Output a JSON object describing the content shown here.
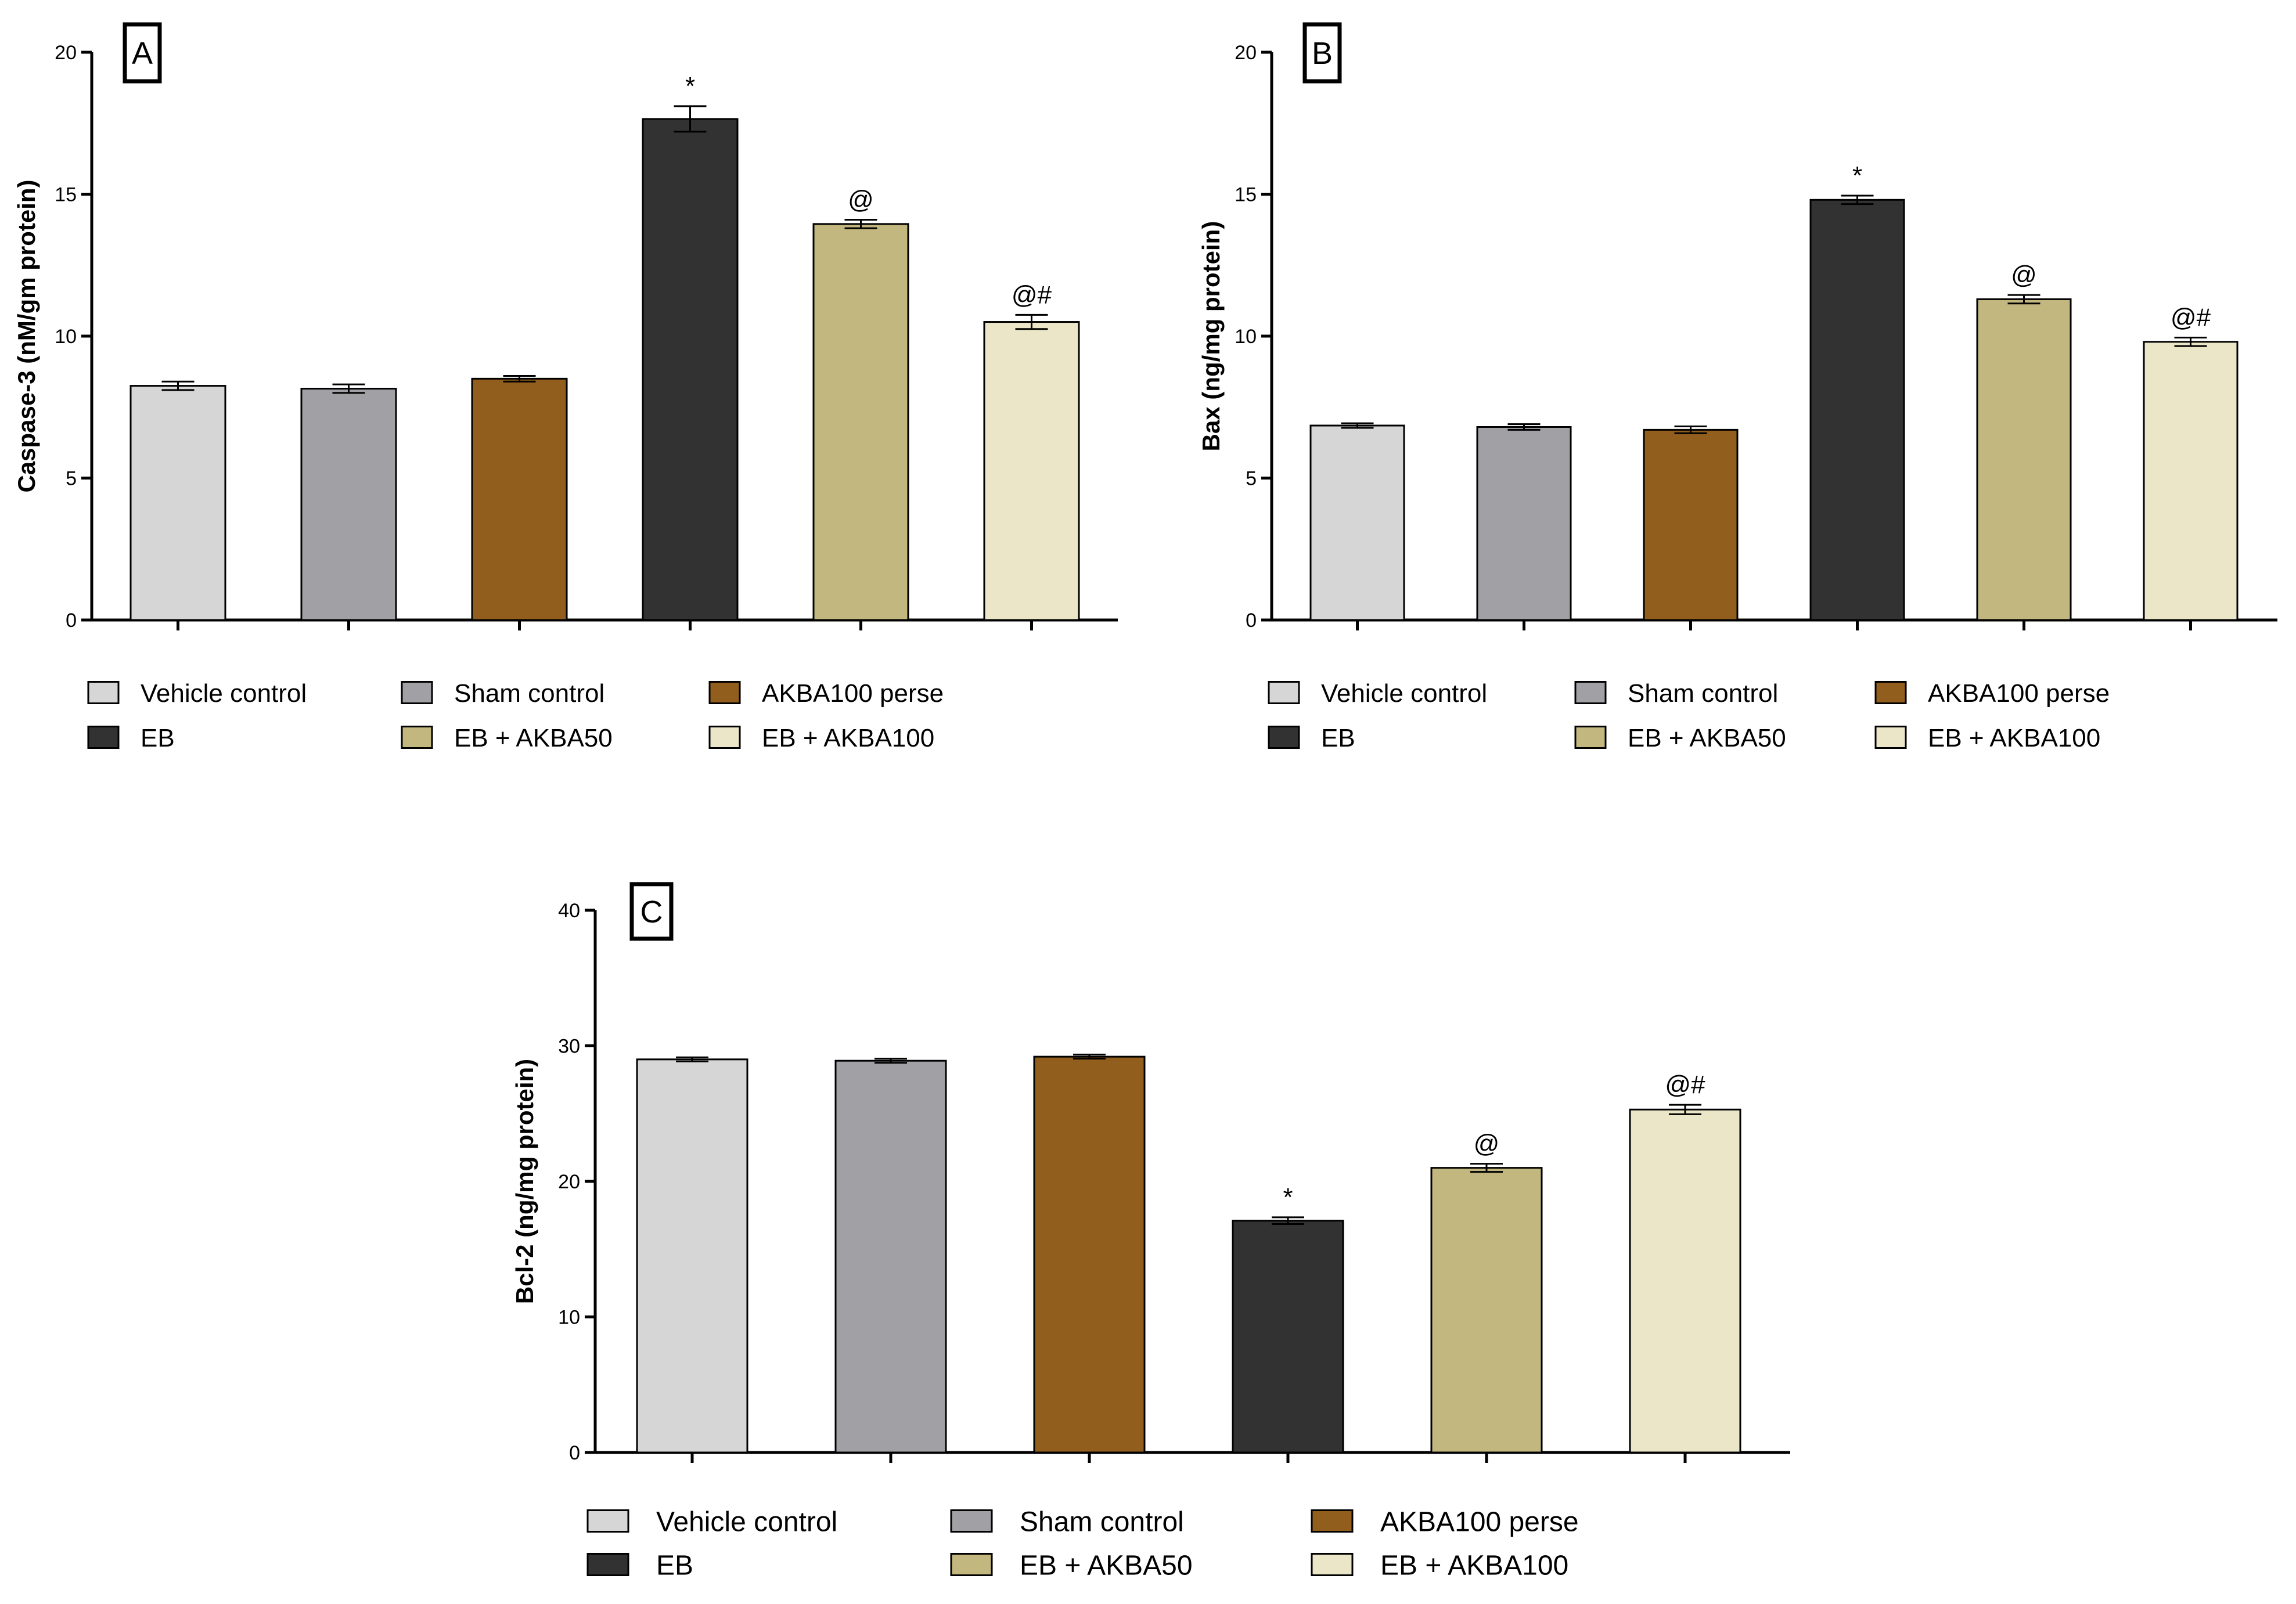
{
  "chart_data": [
    {
      "type": "bar",
      "panel": "A",
      "ylabel": "Caspase-3 (nM/gm protein)",
      "ylim": [
        0,
        20
      ],
      "yticks": [
        0,
        5,
        10,
        15,
        20
      ],
      "categories": [
        "Vehicle control",
        "Sham control",
        "AKBA100 perse",
        "EB",
        "EB + AKBA50",
        "EB + AKBA100"
      ],
      "values": [
        8.25,
        8.15,
        8.5,
        17.65,
        13.95,
        10.5
      ],
      "errors": [
        0.15,
        0.15,
        0.1,
        0.45,
        0.15,
        0.25
      ],
      "annotations": [
        "",
        "",
        "",
        "*",
        "@",
        "@#"
      ]
    },
    {
      "type": "bar",
      "panel": "B",
      "ylabel": "Bax (ng/mg protein)",
      "ylim": [
        0,
        20
      ],
      "yticks": [
        0,
        5,
        10,
        15,
        20
      ],
      "categories": [
        "Vehicle control",
        "Sham control",
        "AKBA100 perse",
        "EB",
        "EB + AKBA50",
        "EB + AKBA100"
      ],
      "values": [
        6.85,
        6.8,
        6.7,
        14.8,
        11.3,
        9.8
      ],
      "errors": [
        0.08,
        0.1,
        0.12,
        0.15,
        0.15,
        0.15
      ],
      "annotations": [
        "",
        "",
        "",
        "*",
        "@",
        "@#"
      ]
    },
    {
      "type": "bar",
      "panel": "C",
      "ylabel": "Bcl-2 (ng/mg protein)",
      "ylim": [
        0,
        40
      ],
      "yticks": [
        0,
        10,
        20,
        30,
        40
      ],
      "categories": [
        "Vehicle control",
        "Sham control",
        "AKBA100 perse",
        "EB",
        "EB + AKBA50",
        "EB + AKBA100"
      ],
      "values": [
        29.0,
        28.9,
        29.2,
        17.1,
        21.0,
        25.3
      ],
      "errors": [
        0.15,
        0.15,
        0.15,
        0.25,
        0.3,
        0.35
      ],
      "annotations": [
        "",
        "",
        "",
        "*",
        "@",
        "@#"
      ]
    }
  ],
  "legend": {
    "items": [
      {
        "label": "Vehicle control",
        "color": "#d6d6d6"
      },
      {
        "label": "Sham control",
        "color": "#a1a0a5"
      },
      {
        "label": "AKBA100 perse",
        "color": "#925e1e"
      },
      {
        "label": "EB",
        "color": "#323232"
      },
      {
        "label": "EB + AKBA50",
        "color": "#c2b77e"
      },
      {
        "label": "EB + AKBA100",
        "color": "#ece6c8"
      }
    ]
  }
}
